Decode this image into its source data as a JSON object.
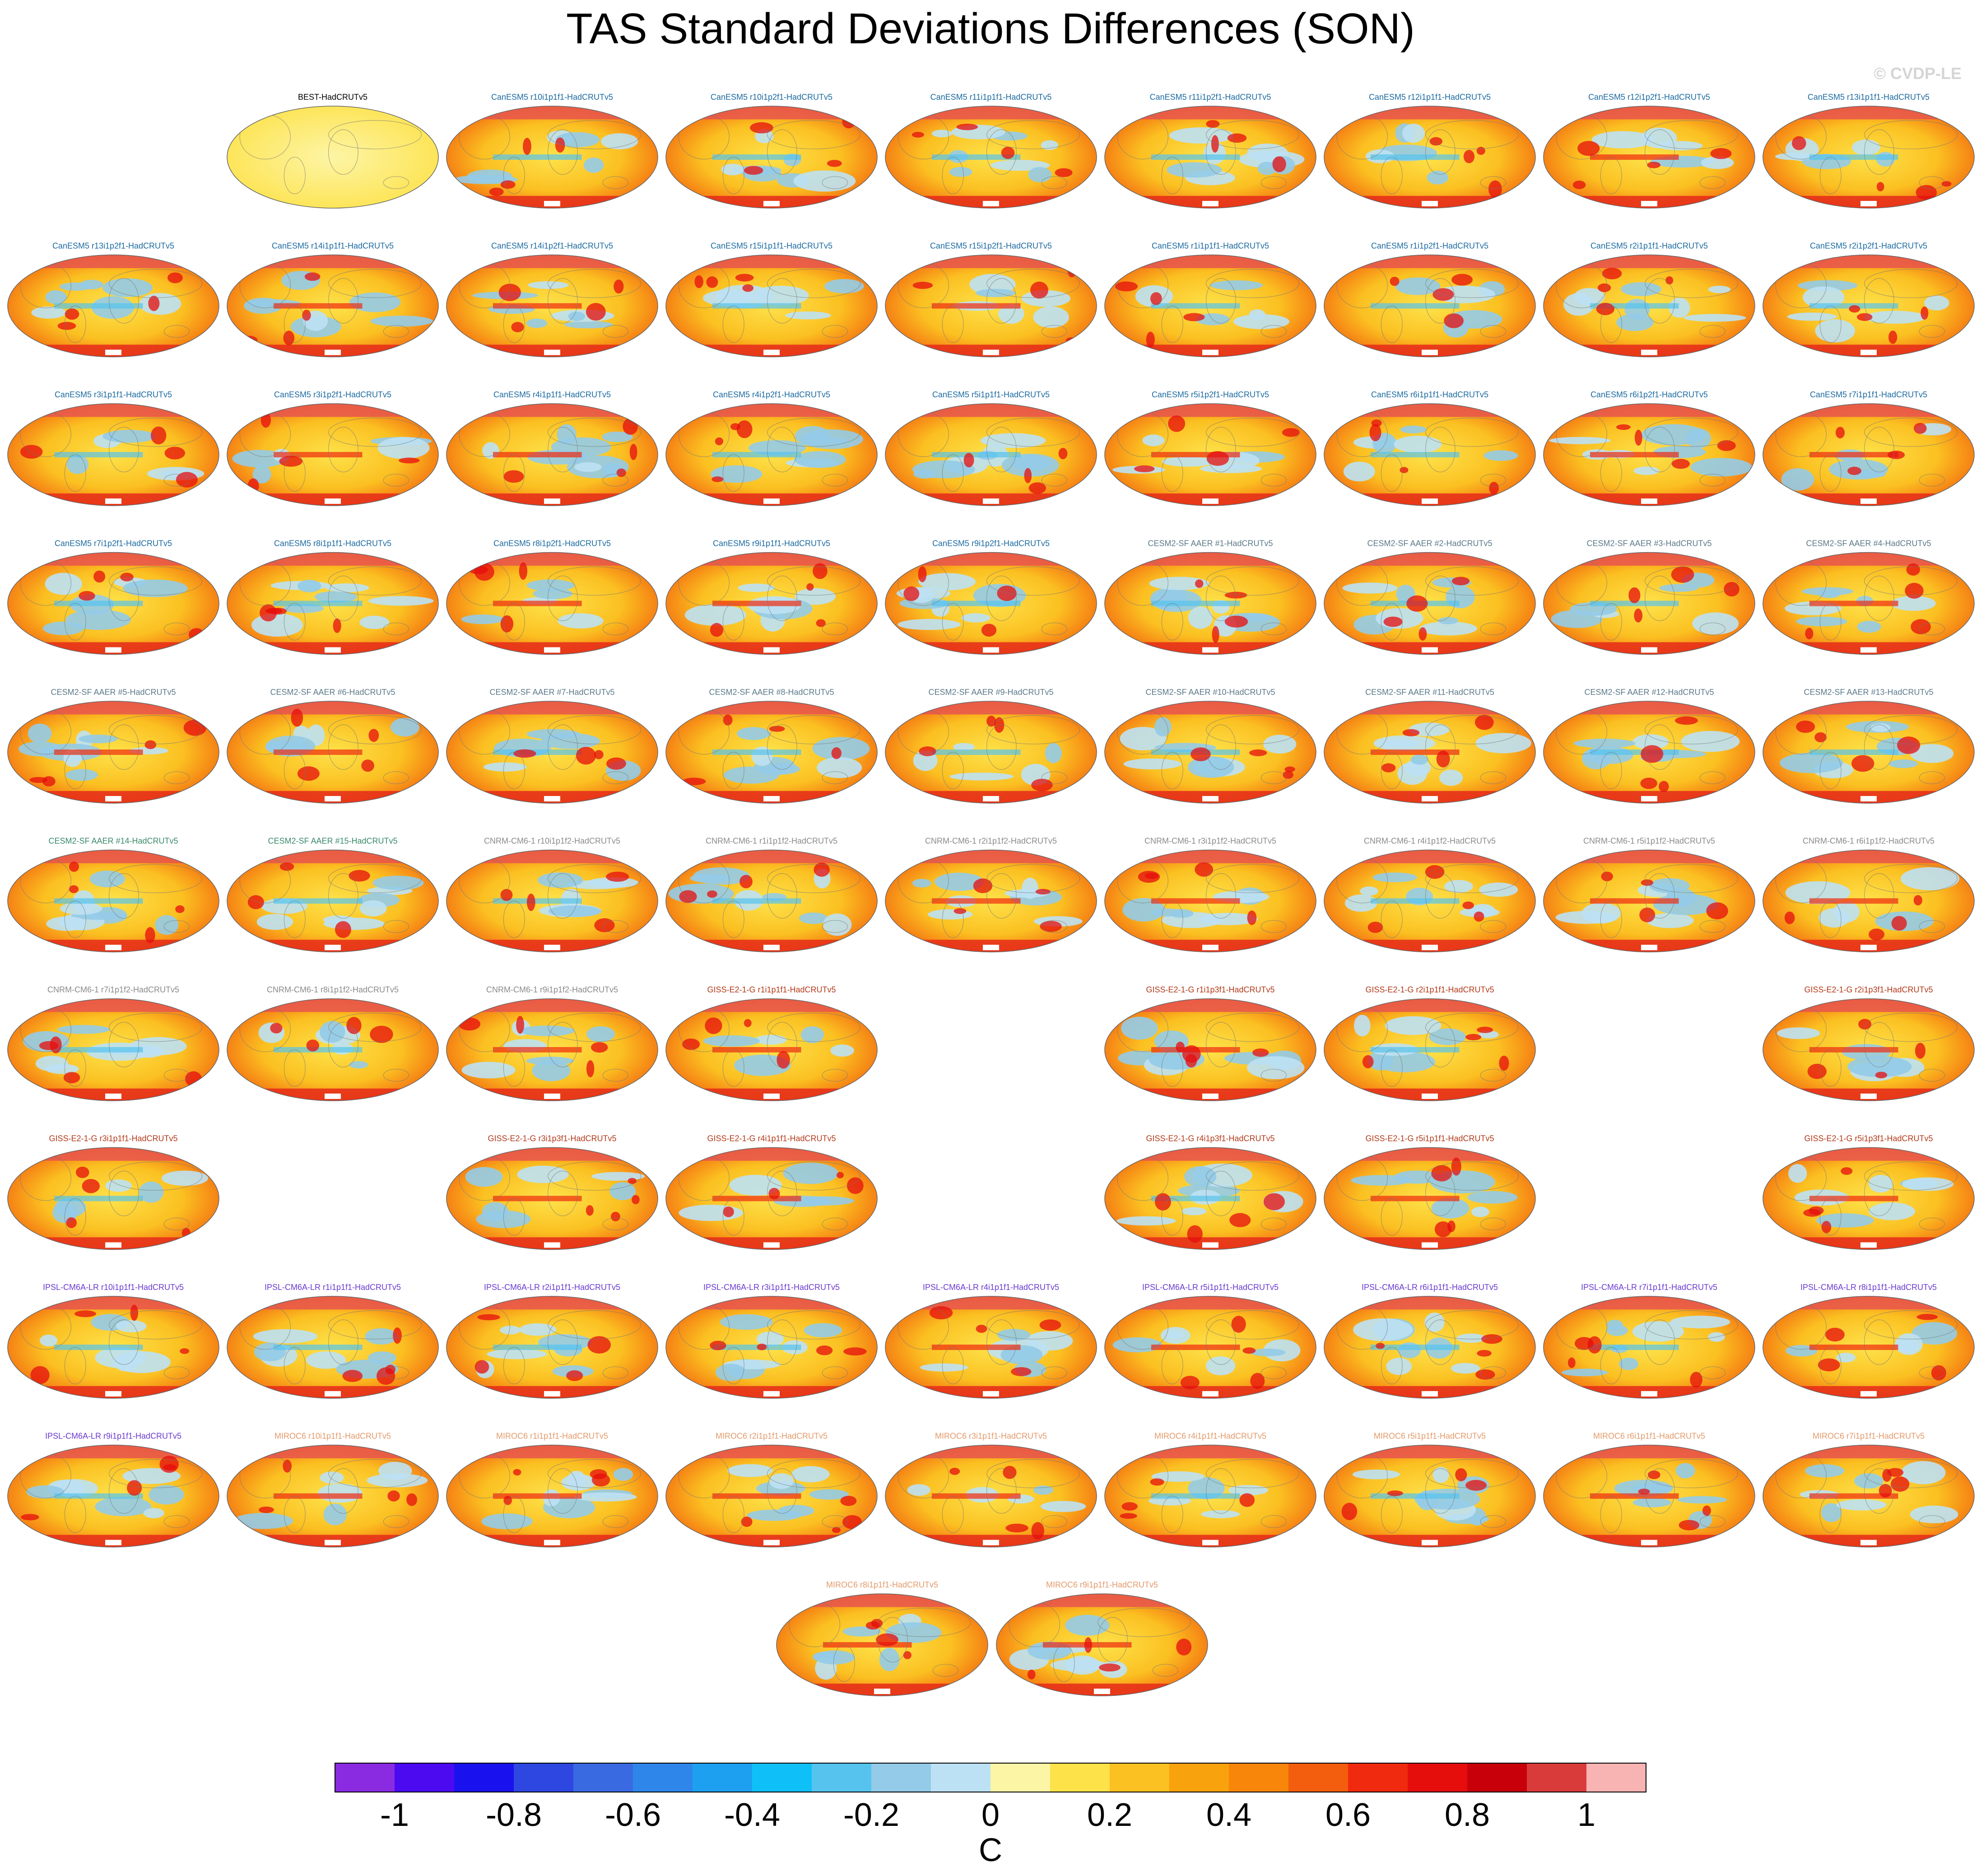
{
  "title": "TAS Standard Deviations Differences (SON)",
  "copyright": "© CVDP-LE",
  "colorbar": {
    "unit": "C",
    "colors": [
      "#8a2be2",
      "#4b0af0",
      "#1a12ee",
      "#2e47e0",
      "#3a6ae2",
      "#2f86ea",
      "#1ea0f0",
      "#0fc0f8",
      "#56c3ee",
      "#93cbe8",
      "#bde1f4",
      "#fdf5a6",
      "#fde24a",
      "#fbc021",
      "#f8a20e",
      "#f7860a",
      "#f25e0d",
      "#f02a0e",
      "#e60d0d",
      "#c8000a",
      "#d93b3b",
      "#f8b3b3"
    ],
    "tick_labels": [
      "-1",
      "-0.8",
      "-0.6",
      "-0.4",
      "-0.2",
      "0",
      "0.2",
      "0.4",
      "0.6",
      "0.8",
      "1"
    ]
  },
  "chart_data": {
    "type": "heatmap",
    "title": "TAS Standard Deviations Differences (SON)",
    "colorbar_label": "C",
    "colorbar_range": [
      -1.1,
      1.1
    ],
    "colorbar_ticks": [
      -1,
      -0.8,
      -0.6,
      -0.4,
      -0.2,
      0,
      0.2,
      0.4,
      0.6,
      0.8,
      1
    ],
    "rows": [
      [
        null,
        {
          "label": "BEST-HadCRUTv5",
          "color": "#000000"
        },
        {
          "label": "CanESM5 r10i1p1f1-HadCRUTv5",
          "color": "#1b6aa0"
        },
        {
          "label": "CanESM5 r10i1p2f1-HadCRUTv5",
          "color": "#1b6aa0"
        },
        {
          "label": "CanESM5 r11i1p1f1-HadCRUTv5",
          "color": "#1b6aa0"
        },
        {
          "label": "CanESM5 r11i1p2f1-HadCRUTv5",
          "color": "#1b6aa0"
        },
        {
          "label": "CanESM5 r12i1p1f1-HadCRUTv5",
          "color": "#1b6aa0"
        },
        {
          "label": "CanESM5 r12i1p2f1-HadCRUTv5",
          "color": "#1b6aa0"
        },
        {
          "label": "CanESM5 r13i1p1f1-HadCRUTv5",
          "color": "#1b6aa0"
        }
      ],
      [
        {
          "label": "CanESM5 r13i1p2f1-HadCRUTv5",
          "color": "#1b6aa0"
        },
        {
          "label": "CanESM5 r14i1p1f1-HadCRUTv5",
          "color": "#1b6aa0"
        },
        {
          "label": "CanESM5 r14i1p2f1-HadCRUTv5",
          "color": "#1b6aa0"
        },
        {
          "label": "CanESM5 r15i1p1f1-HadCRUTv5",
          "color": "#1b6aa0"
        },
        {
          "label": "CanESM5 r15i1p2f1-HadCRUTv5",
          "color": "#1b6aa0"
        },
        {
          "label": "CanESM5 r1i1p1f1-HadCRUTv5",
          "color": "#1b6aa0"
        },
        {
          "label": "CanESM5 r1i1p2f1-HadCRUTv5",
          "color": "#1b6aa0"
        },
        {
          "label": "CanESM5 r2i1p1f1-HadCRUTv5",
          "color": "#1b6aa0"
        },
        {
          "label": "CanESM5 r2i1p2f1-HadCRUTv5",
          "color": "#1b6aa0"
        }
      ],
      [
        {
          "label": "CanESM5 r3i1p1f1-HadCRUTv5",
          "color": "#1b6aa0"
        },
        {
          "label": "CanESM5 r3i1p2f1-HadCRUTv5",
          "color": "#1b6aa0"
        },
        {
          "label": "CanESM5 r4i1p1f1-HadCRUTv5",
          "color": "#1b6aa0"
        },
        {
          "label": "CanESM5 r4i1p2f1-HadCRUTv5",
          "color": "#1b6aa0"
        },
        {
          "label": "CanESM5 r5i1p1f1-HadCRUTv5",
          "color": "#1b6aa0"
        },
        {
          "label": "CanESM5 r5i1p2f1-HadCRUTv5",
          "color": "#1b6aa0"
        },
        {
          "label": "CanESM5 r6i1p1f1-HadCRUTv5",
          "color": "#1b6aa0"
        },
        {
          "label": "CanESM5 r6i1p2f1-HadCRUTv5",
          "color": "#1b6aa0"
        },
        {
          "label": "CanESM5 r7i1p1f1-HadCRUTv5",
          "color": "#1b6aa0"
        }
      ],
      [
        {
          "label": "CanESM5 r7i1p2f1-HadCRUTv5",
          "color": "#1b6aa0"
        },
        {
          "label": "CanESM5 r8i1p1f1-HadCRUTv5",
          "color": "#1b6aa0"
        },
        {
          "label": "CanESM5 r8i1p2f1-HadCRUTv5",
          "color": "#1b6aa0"
        },
        {
          "label": "CanESM5 r9i1p1f1-HadCRUTv5",
          "color": "#1b6aa0"
        },
        {
          "label": "CanESM5 r9i1p2f1-HadCRUTv5",
          "color": "#1b6aa0"
        },
        {
          "label": "CESM2-SF AAER #1-HadCRUTv5",
          "color": "#5c7a8a"
        },
        {
          "label": "CESM2-SF AAER #2-HadCRUTv5",
          "color": "#5c7a8a"
        },
        {
          "label": "CESM2-SF AAER #3-HadCRUTv5",
          "color": "#5c7a8a"
        },
        {
          "label": "CESM2-SF AAER #4-HadCRUTv5",
          "color": "#5c7a8a"
        }
      ],
      [
        {
          "label": "CESM2-SF AAER #5-HadCRUTv5",
          "color": "#5c7a8a"
        },
        {
          "label": "CESM2-SF AAER #6-HadCRUTv5",
          "color": "#5c7a8a"
        },
        {
          "label": "CESM2-SF AAER #7-HadCRUTv5",
          "color": "#5c7a8a"
        },
        {
          "label": "CESM2-SF AAER #8-HadCRUTv5",
          "color": "#5c7a8a"
        },
        {
          "label": "CESM2-SF AAER #9-HadCRUTv5",
          "color": "#5c7a8a"
        },
        {
          "label": "CESM2-SF AAER #10-HadCRUTv5",
          "color": "#5c7a8a"
        },
        {
          "label": "CESM2-SF AAER #11-HadCRUTv5",
          "color": "#5c7a8a"
        },
        {
          "label": "CESM2-SF AAER #12-HadCRUTv5",
          "color": "#5c7a8a"
        },
        {
          "label": "CESM2-SF AAER #13-HadCRUTv5",
          "color": "#5c7a8a"
        }
      ],
      [
        {
          "label": "CESM2-SF AAER #14-HadCRUTv5",
          "color": "#3a8a6a"
        },
        {
          "label": "CESM2-SF AAER #15-HadCRUTv5",
          "color": "#3a8a6a"
        },
        {
          "label": "CNRM-CM6-1 r10i1p1f2-HadCRUTv5",
          "color": "#8a8a8a"
        },
        {
          "label": "CNRM-CM6-1 r1i1p1f2-HadCRUTv5",
          "color": "#8a8a8a"
        },
        {
          "label": "CNRM-CM6-1 r2i1p1f2-HadCRUTv5",
          "color": "#8a8a8a"
        },
        {
          "label": "CNRM-CM6-1 r3i1p1f2-HadCRUTv5",
          "color": "#8a8a8a"
        },
        {
          "label": "CNRM-CM6-1 r4i1p1f2-HadCRUTv5",
          "color": "#8a8a8a"
        },
        {
          "label": "CNRM-CM6-1 r5i1p1f2-HadCRUTv5",
          "color": "#8a8a8a"
        },
        {
          "label": "CNRM-CM6-1 r6i1p1f2-HadCRUTv5",
          "color": "#8a8a8a"
        }
      ],
      [
        {
          "label": "CNRM-CM6-1 r7i1p1f2-HadCRUTv5",
          "color": "#8a8a8a"
        },
        {
          "label": "CNRM-CM6-1 r8i1p1f2-HadCRUTv5",
          "color": "#8a8a8a"
        },
        {
          "label": "CNRM-CM6-1 r9i1p1f2-HadCRUTv5",
          "color": "#8a8a8a"
        },
        {
          "label": "GISS-E2-1-G r1i1p1f1-HadCRUTv5",
          "color": "#b33a1a"
        },
        null,
        {
          "label": "GISS-E2-1-G r1i1p3f1-HadCRUTv5",
          "color": "#b33a1a"
        },
        {
          "label": "GISS-E2-1-G r2i1p1f1-HadCRUTv5",
          "color": "#b33a1a"
        },
        null,
        {
          "label": "GISS-E2-1-G r2i1p3f1-HadCRUTv5",
          "color": "#b33a1a"
        }
      ],
      [
        {
          "label": "GISS-E2-1-G r3i1p1f1-HadCRUTv5",
          "color": "#b33a1a"
        },
        null,
        {
          "label": "GISS-E2-1-G r3i1p3f1-HadCRUTv5",
          "color": "#b33a1a"
        },
        {
          "label": "GISS-E2-1-G r4i1p1f1-HadCRUTv5",
          "color": "#b33a1a"
        },
        null,
        {
          "label": "GISS-E2-1-G r4i1p3f1-HadCRUTv5",
          "color": "#b33a1a"
        },
        {
          "label": "GISS-E2-1-G r5i1p1f1-HadCRUTv5",
          "color": "#b33a1a"
        },
        null,
        {
          "label": "GISS-E2-1-G r5i1p3f1-HadCRUTv5",
          "color": "#b33a1a"
        }
      ],
      [
        {
          "label": "IPSL-CM6A-LR r10i1p1f1-HadCRUTv5",
          "color": "#6a3ad0"
        },
        {
          "label": "IPSL-CM6A-LR r1i1p1f1-HadCRUTv5",
          "color": "#6a3ad0"
        },
        {
          "label": "IPSL-CM6A-LR r2i1p1f1-HadCRUTv5",
          "color": "#6a3ad0"
        },
        {
          "label": "IPSL-CM6A-LR r3i1p1f1-HadCRUTv5",
          "color": "#6a3ad0"
        },
        {
          "label": "IPSL-CM6A-LR r4i1p1f1-HadCRUTv5",
          "color": "#6a3ad0"
        },
        {
          "label": "IPSL-CM6A-LR r5i1p1f1-HadCRUTv5",
          "color": "#6a3ad0"
        },
        {
          "label": "IPSL-CM6A-LR r6i1p1f1-HadCRUTv5",
          "color": "#6a3ad0"
        },
        {
          "label": "IPSL-CM6A-LR r7i1p1f1-HadCRUTv5",
          "color": "#6a3ad0"
        },
        {
          "label": "IPSL-CM6A-LR r8i1p1f1-HadCRUTv5",
          "color": "#6a3ad0"
        }
      ],
      [
        {
          "label": "IPSL-CM6A-LR r9i1p1f1-HadCRUTv5",
          "color": "#6a3ad0"
        },
        {
          "label": "MIROC6 r10i1p1f1-HadCRUTv5",
          "color": "#e39a6a"
        },
        {
          "label": "MIROC6 r1i1p1f1-HadCRUTv5",
          "color": "#e39a6a"
        },
        {
          "label": "MIROC6 r2i1p1f1-HadCRUTv5",
          "color": "#e39a6a"
        },
        {
          "label": "MIROC6 r3i1p1f1-HadCRUTv5",
          "color": "#e39a6a"
        },
        {
          "label": "MIROC6 r4i1p1f1-HadCRUTv5",
          "color": "#e39a6a"
        },
        {
          "label": "MIROC6 r5i1p1f1-HadCRUTv5",
          "color": "#e39a6a"
        },
        {
          "label": "MIROC6 r6i1p1f1-HadCRUTv5",
          "color": "#e39a6a"
        },
        {
          "label": "MIROC6 r7i1p1f1-HadCRUTv5",
          "color": "#e39a6a"
        }
      ]
    ],
    "last_row": [
      {
        "label": "MIROC6 r8i1p1f1-HadCRUTv5",
        "color": "#e39a6a"
      },
      {
        "label": "MIROC6 r9i1p1f1-HadCRUTv5",
        "color": "#e39a6a"
      }
    ]
  }
}
